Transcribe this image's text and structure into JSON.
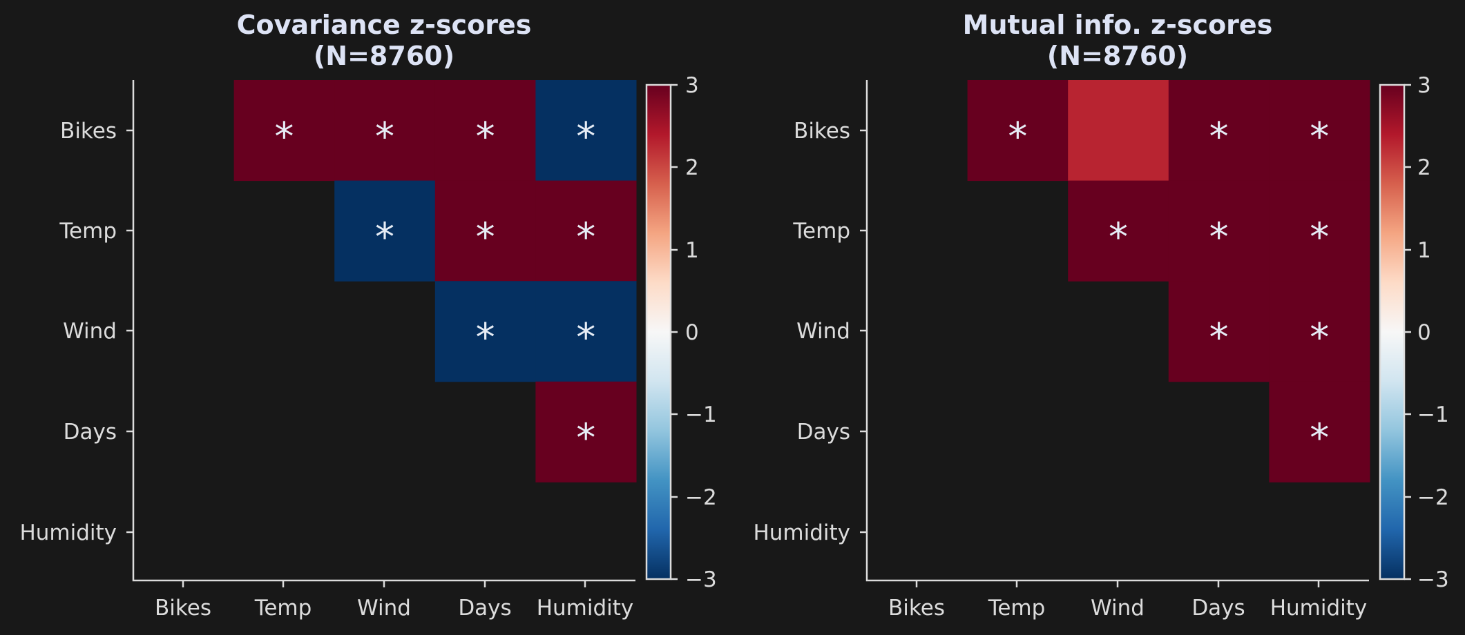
{
  "colormap": "RdBu_r",
  "colorbar_ticks": [
    "3",
    "2",
    "1",
    "0",
    "−1",
    "−2",
    "−3"
  ],
  "chart_data": [
    {
      "type": "heatmap",
      "title_line1": "Covariance z-scores",
      "title_line2": "(N=8760)",
      "row_labels": [
        "Bikes",
        "Temp",
        "Wind",
        "Days",
        "Humidity"
      ],
      "col_labels": [
        "Bikes",
        "Temp",
        "Wind",
        "Days",
        "Humidity"
      ],
      "vmin": -3,
      "vmax": 3,
      "values": [
        [
          null,
          3,
          3,
          3,
          -3
        ],
        [
          null,
          null,
          -3,
          3,
          3
        ],
        [
          null,
          null,
          null,
          -3,
          -3
        ],
        [
          null,
          null,
          null,
          null,
          3
        ],
        [
          null,
          null,
          null,
          null,
          null
        ]
      ],
      "significant": [
        [
          false,
          true,
          true,
          true,
          true
        ],
        [
          false,
          false,
          true,
          true,
          true
        ],
        [
          false,
          false,
          false,
          true,
          true
        ],
        [
          false,
          false,
          false,
          false,
          true
        ],
        [
          false,
          false,
          false,
          false,
          false
        ]
      ]
    },
    {
      "type": "heatmap",
      "title_line1": "Mutual info. z-scores",
      "title_line2": "(N=8760)",
      "row_labels": [
        "Bikes",
        "Temp",
        "Wind",
        "Days",
        "Humidity"
      ],
      "col_labels": [
        "Bikes",
        "Temp",
        "Wind",
        "Days",
        "Humidity"
      ],
      "vmin": -3,
      "vmax": 3,
      "values": [
        [
          null,
          3,
          2.3,
          3,
          3
        ],
        [
          null,
          null,
          3,
          3,
          3
        ],
        [
          null,
          null,
          null,
          3,
          3
        ],
        [
          null,
          null,
          null,
          null,
          3
        ],
        [
          null,
          null,
          null,
          null,
          null
        ]
      ],
      "significant": [
        [
          false,
          true,
          false,
          true,
          true
        ],
        [
          false,
          false,
          true,
          true,
          true
        ],
        [
          false,
          false,
          false,
          true,
          true
        ],
        [
          false,
          false,
          false,
          false,
          true
        ],
        [
          false,
          false,
          false,
          false,
          false
        ]
      ]
    }
  ]
}
